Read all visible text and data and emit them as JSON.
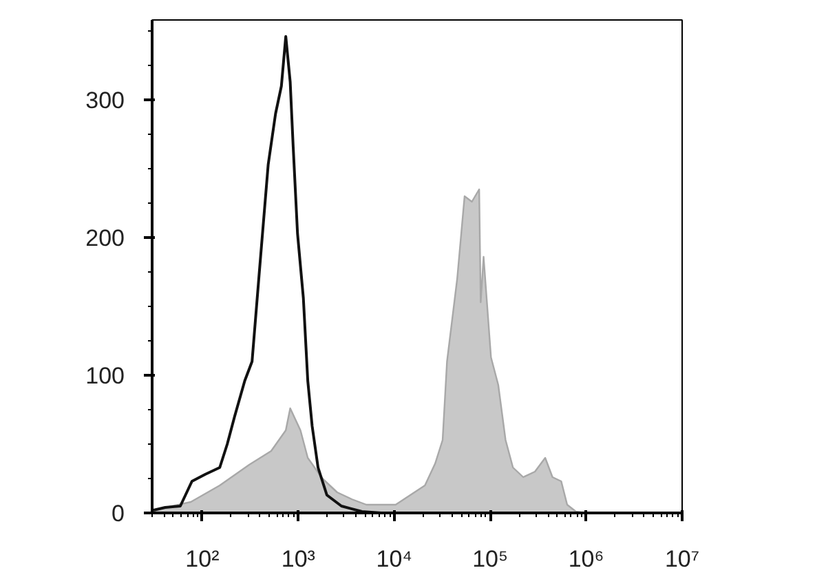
{
  "chart_data": {
    "type": "area",
    "log": "x",
    "xlim": [
      30,
      10000000
    ],
    "ylim": [
      0,
      358
    ],
    "xticks": [
      {
        "value": 100,
        "label": "10²"
      },
      {
        "value": 1000,
        "label": "10³"
      },
      {
        "value": 10000,
        "label": "10⁴"
      },
      {
        "value": 100000,
        "label": "10⁵"
      },
      {
        "value": 1000000,
        "label": "10⁶"
      },
      {
        "value": 10000000,
        "label": "10⁷"
      }
    ],
    "yticks": [
      0,
      100,
      200,
      300
    ],
    "grid": false,
    "series": [
      {
        "color": "#c8c8c8",
        "x": [
          31,
          76,
          152,
          308,
          522,
          741,
          824,
          1054,
          1256,
          1786,
          2541,
          3606,
          5129,
          10350,
          20893,
          26730,
          31920,
          35480,
          45290,
          54080,
          64420,
          76740,
          79620,
          85310,
          101900,
          121300,
          144500,
          172600,
          220800,
          292400,
          374100,
          445700,
          549500,
          633900,
          781600,
          1000000
        ],
        "values": [
          2,
          8,
          20,
          35,
          45,
          60,
          76,
          60,
          40,
          25,
          15,
          10,
          6,
          6,
          20,
          36,
          53,
          110,
          170,
          230,
          226,
          235,
          153,
          186,
          113,
          93,
          53,
          33,
          26,
          30,
          40,
          26,
          23,
          6,
          1,
          0
        ]
      },
      {
        "type": "line",
        "color": "#111111",
        "x": [
          31,
          41,
          59,
          78,
          107,
          152,
          182,
          217,
          277,
          330,
          394,
          486,
          580,
          667,
          741,
          824,
          885,
          982,
          1130,
          1256,
          1396,
          1607,
          1986,
          2818,
          4613,
          7295
        ],
        "values": [
          2,
          4,
          5,
          23,
          28,
          33,
          50,
          70,
          96,
          110,
          176,
          253,
          290,
          310,
          346,
          313,
          266,
          203,
          156,
          96,
          63,
          33,
          13,
          5,
          1,
          0
        ]
      }
    ]
  }
}
